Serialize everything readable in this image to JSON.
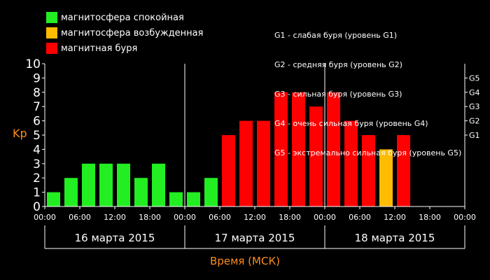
{
  "legend": [
    {
      "label": "магнитосфера спокойная",
      "color": "#22ee22"
    },
    {
      "label": "магнитосфера возбужденная",
      "color": "#ffbb00"
    },
    {
      "label": "магнитная буря",
      "color": "#ff0000"
    }
  ],
  "g_levels": [
    "G1 - слабая буря (уровень G1)",
    "G2 - средняя буря (уровень G2)",
    "G3 - сильная буря (уровень G3)",
    "G4 - очень сильная буря (уровень G4)",
    "G5 - экстремально сильная буря (уровень G5)"
  ],
  "chart_data": {
    "type": "bar",
    "title": "",
    "ylabel": "Kp",
    "xlabel": "Время (МСК)",
    "ylim": [
      0,
      10
    ],
    "yticks": [
      0,
      1,
      2,
      3,
      4,
      5,
      6,
      7,
      8,
      9,
      10
    ],
    "y2ticks": [
      {
        "value": 5,
        "label": "G1"
      },
      {
        "value": 6,
        "label": "G2"
      },
      {
        "value": 7,
        "label": "G3"
      },
      {
        "value": 8,
        "label": "G4"
      },
      {
        "value": 9,
        "label": "G5"
      }
    ],
    "xtick_labels": [
      "00:00",
      "06:00",
      "12:00",
      "18:00",
      "00:00",
      "06:00",
      "12:00",
      "18:00",
      "00:00",
      "06:00",
      "12:00",
      "18:00",
      "00:00"
    ],
    "days": [
      "16 марта 2015",
      "17 марта 2015",
      "18 марта 2015"
    ],
    "values": [
      1,
      2,
      3,
      3,
      3,
      2,
      3,
      1,
      1,
      2,
      5,
      6,
      6,
      8,
      8,
      7,
      8,
      6,
      5,
      4,
      5
    ],
    "colors": {
      "quiet": "#22ee22",
      "active": "#ffbb00",
      "storm": "#ff0000"
    }
  }
}
